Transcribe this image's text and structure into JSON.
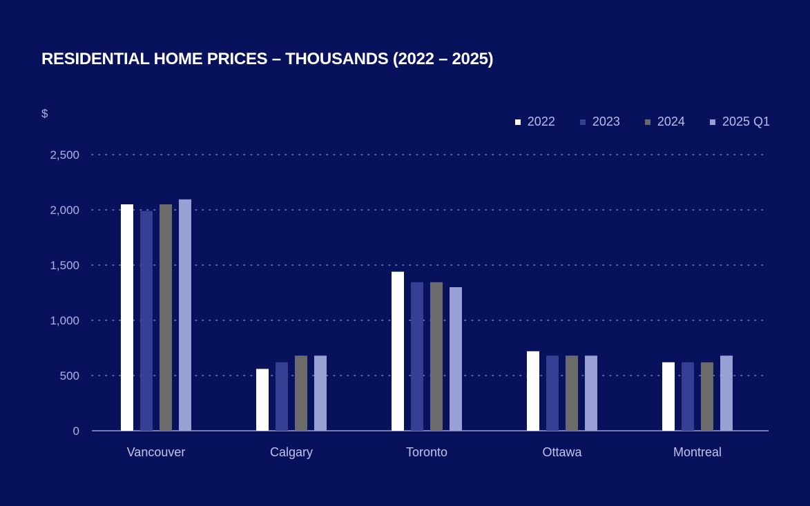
{
  "chart_data": {
    "type": "bar",
    "title": "RESIDENTIAL HOME PRICES – THOUSANDS (2022 – 2025)",
    "ylabel": "$",
    "xlabel": "",
    "ylim": [
      0,
      2500
    ],
    "yticks": [
      0,
      500,
      1000,
      1500,
      2000,
      2500
    ],
    "ytick_labels": [
      "0",
      "500",
      "1,000",
      "1,500",
      "2,000",
      "2,500"
    ],
    "grid": true,
    "legend_position": "top-right",
    "categories": [
      "Vancouver",
      "Calgary",
      "Toronto",
      "Ottawa",
      "Montreal"
    ],
    "series": [
      {
        "name": "2022",
        "color": "#ffffff",
        "values": [
          2050,
          560,
          1440,
          720,
          620
        ]
      },
      {
        "name": "2023",
        "color": "#373f95",
        "values": [
          1990,
          620,
          1345,
          680,
          620
        ]
      },
      {
        "name": "2024",
        "color": "#6b6b6b",
        "values": [
          2050,
          680,
          1345,
          680,
          620
        ]
      },
      {
        "name": "2025 Q1",
        "color": "#98a0d4",
        "values": [
          2095,
          680,
          1300,
          680,
          680
        ]
      }
    ]
  }
}
